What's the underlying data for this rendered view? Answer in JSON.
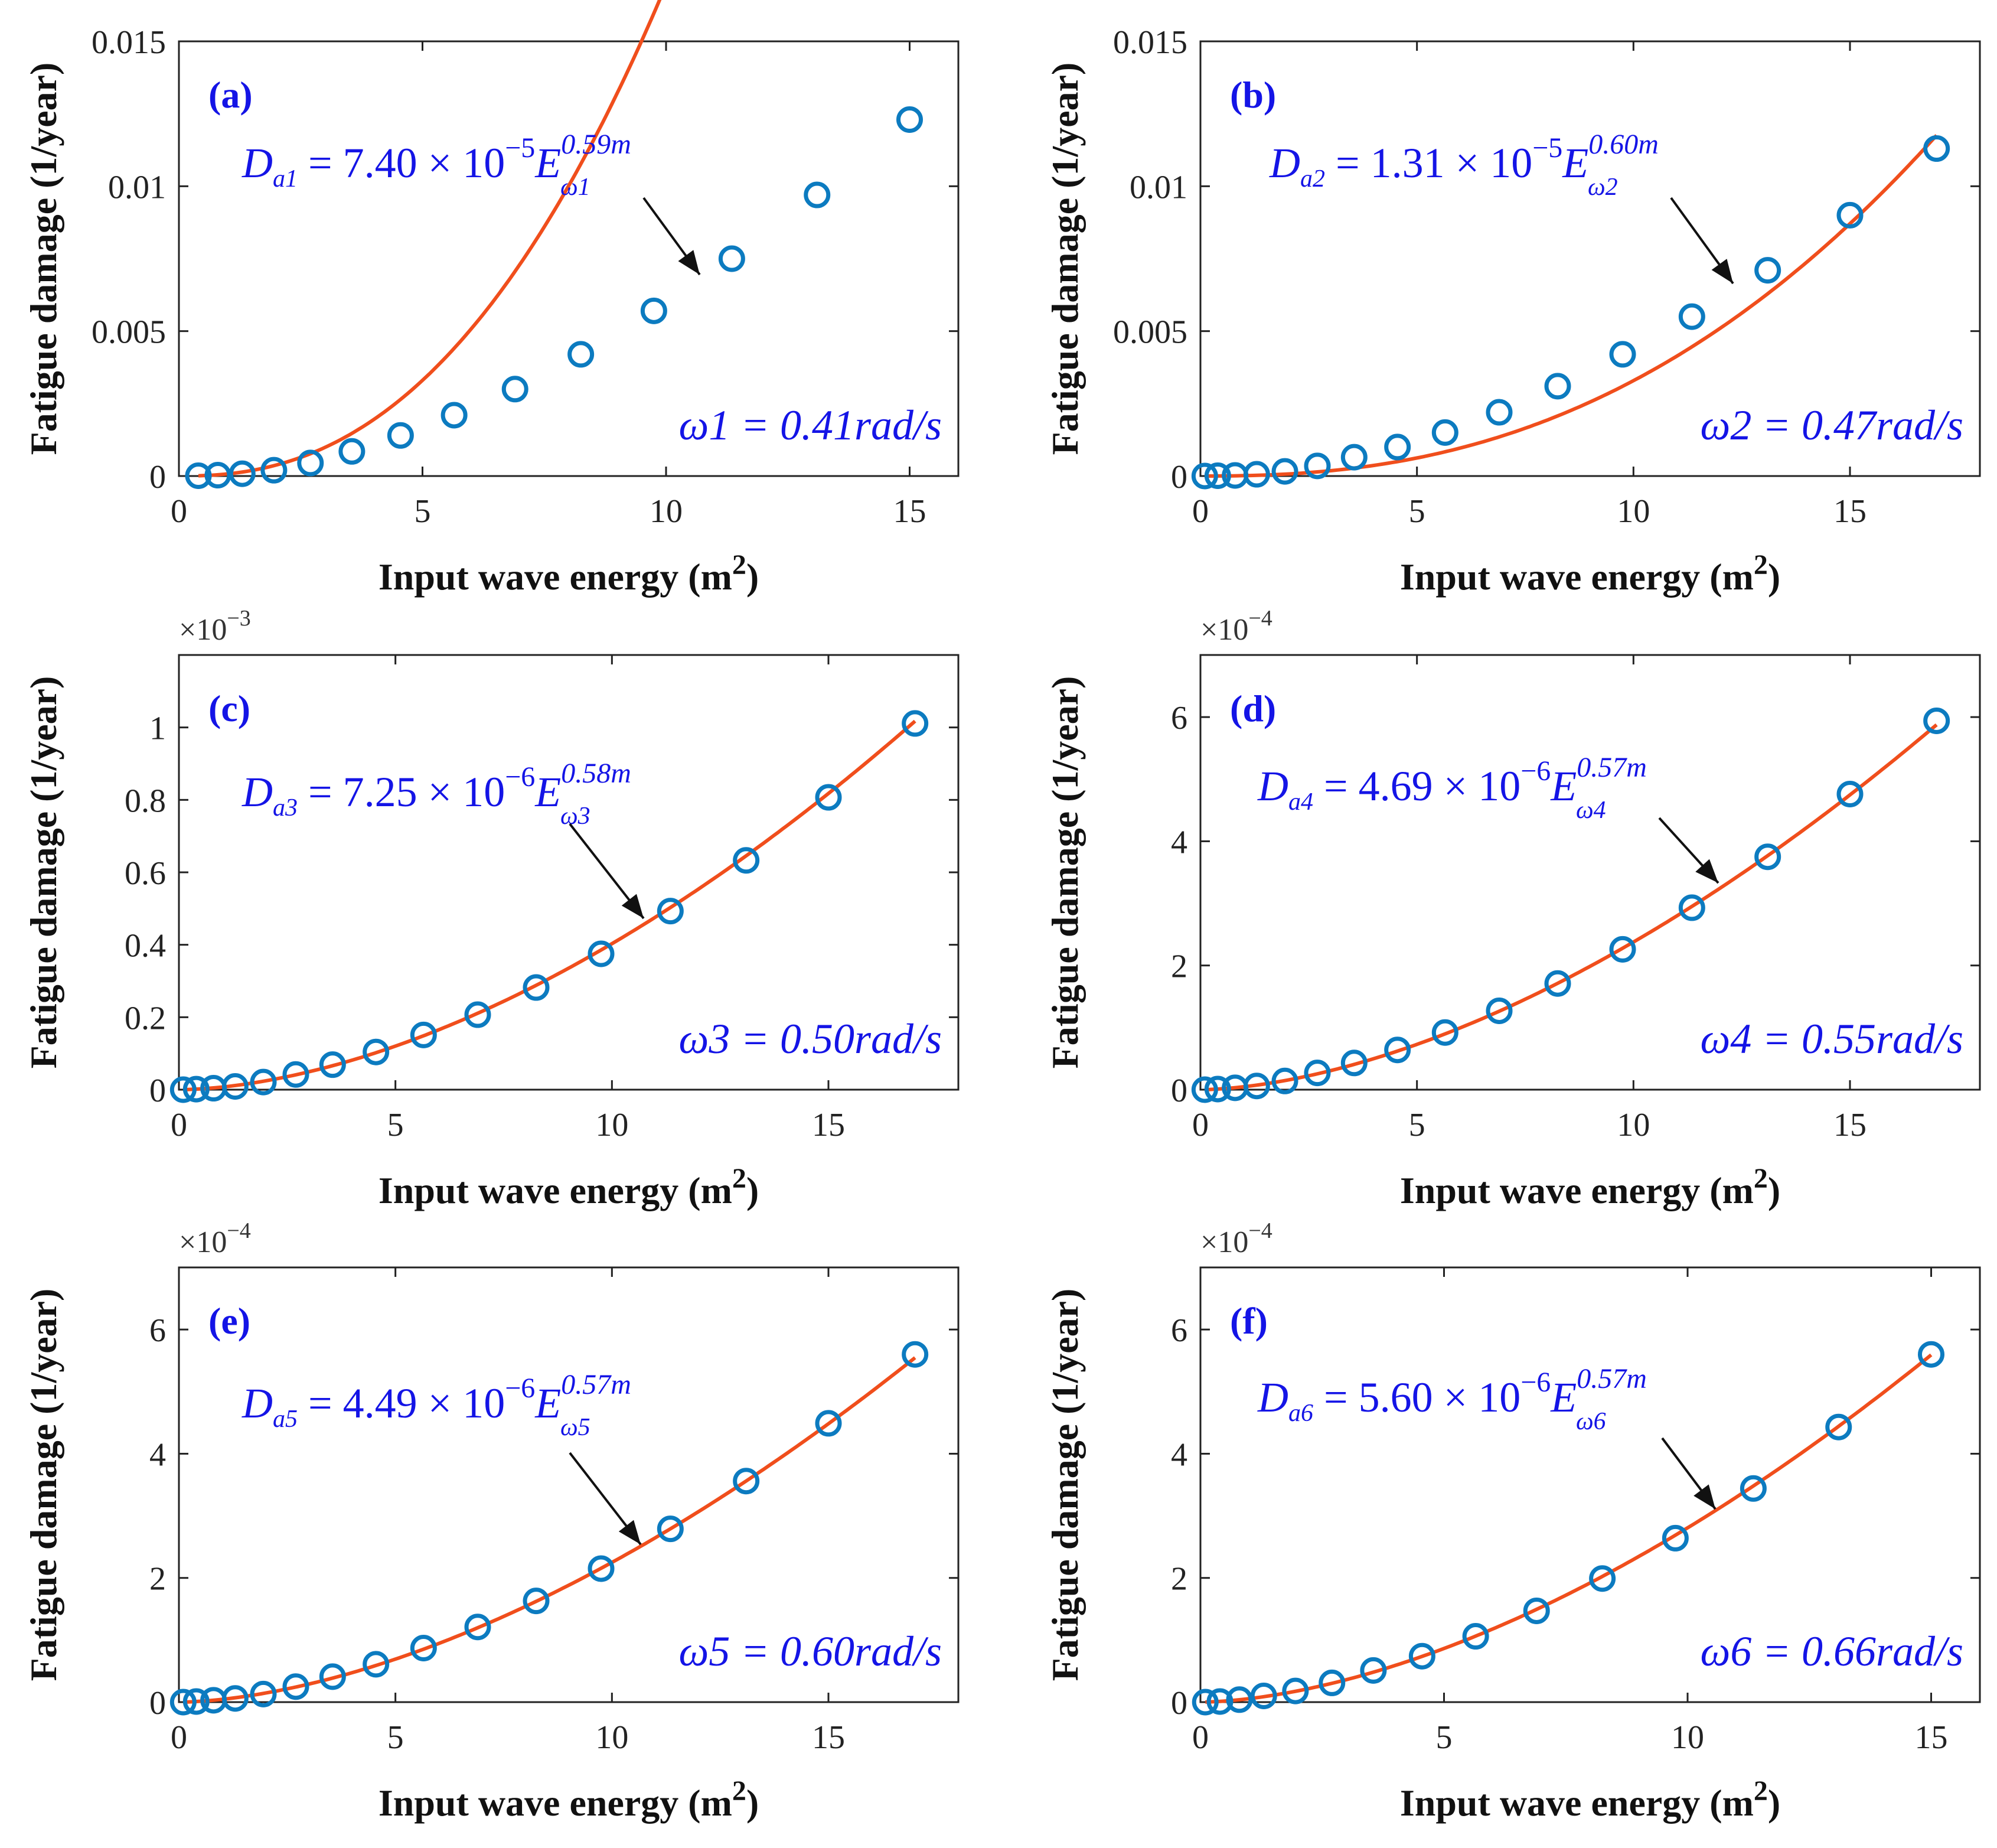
{
  "figure": {
    "xlabel": "Input wave energy (m",
    "xlabel_sup": "2",
    "xlabel_end": ")",
    "ylabel": "Fatigue damage (1/year)"
  },
  "colors": {
    "fit": "#f04e1c",
    "marker": "#0c7bc0",
    "annotation": "#1414e6"
  },
  "chart_data": [
    {
      "type": "scatter",
      "panel": "(a)",
      "xlim": [
        0,
        16
      ],
      "ylim": [
        0,
        0.015
      ],
      "xticks": [
        0,
        5,
        10,
        15
      ],
      "xtick_labels": [
        "0",
        "5",
        "10",
        "15"
      ],
      "yticks": [
        0,
        0.005,
        0.01,
        0.015
      ],
      "ytick_labels": [
        "0",
        "0.005",
        "0.01",
        "0.015"
      ],
      "exponent_label": "",
      "eq_D": "D",
      "eq_Dsub": "a1",
      "eq_rest": " = 7.40 × 10",
      "eq_pow": "−5",
      "eq_E": "E",
      "eq_Esup": "0.59m",
      "eq_Esub": "ω1",
      "omega_text": "ω1 = 0.41rad/s",
      "fit_coef": 7.4e-05,
      "fit_exp": 2.36,
      "series": [
        {
          "name": "fit",
          "style": "line"
        },
        {
          "name": "data",
          "style": "circle",
          "x": [
            0.4,
            0.8,
            1.3,
            1.95,
            2.7,
            3.55,
            4.55,
            5.65,
            6.9,
            8.25,
            9.75,
            11.35,
            13.1,
            15.0
          ],
          "y": [
            1e-05,
            3e-05,
            8e-05,
            0.0002,
            0.00045,
            0.00085,
            0.0014,
            0.0021,
            0.003,
            0.0042,
            0.0057,
            0.0075,
            0.0097,
            0.0123
          ]
        }
      ]
    },
    {
      "type": "scatter",
      "panel": "(b)",
      "xlim": [
        0,
        18
      ],
      "ylim": [
        0,
        0.015
      ],
      "xticks": [
        0,
        5,
        10,
        15
      ],
      "xtick_labels": [
        "0",
        "5",
        "10",
        "15"
      ],
      "yticks": [
        0,
        0.005,
        0.01,
        0.015
      ],
      "ytick_labels": [
        "0",
        "0.005",
        "0.01",
        "0.015"
      ],
      "exponent_label": "",
      "eq_D": "D",
      "eq_Dsub": "a2",
      "eq_rest": " = 1.31 × 10",
      "eq_pow": "−5",
      "eq_E": "E",
      "eq_Esup": "0.60m",
      "eq_Esub": "ω2",
      "omega_text": "ω2 = 0.47rad/s",
      "fit_coef": 1.31e-05,
      "fit_exp": 2.4,
      "series": [
        {
          "name": "fit",
          "style": "line"
        },
        {
          "name": "data",
          "style": "circle",
          "x": [
            0.1,
            0.4,
            0.8,
            1.3,
            1.95,
            2.7,
            3.55,
            4.55,
            5.65,
            6.9,
            8.25,
            9.75,
            11.35,
            13.1,
            15.0,
            17.0
          ],
          "y": [
            0.0,
            1e-05,
            2e-05,
            6e-05,
            0.00016,
            0.00035,
            0.00065,
            0.001,
            0.0015,
            0.0022,
            0.0031,
            0.0042,
            0.0055,
            0.0071,
            0.009,
            0.0113
          ]
        }
      ]
    },
    {
      "type": "scatter",
      "panel": "(c)",
      "xlim": [
        0,
        18
      ],
      "ylim": [
        0,
        0.0012
      ],
      "xticks": [
        0,
        5,
        10,
        15
      ],
      "xtick_labels": [
        "0",
        "5",
        "10",
        "15"
      ],
      "yticks": [
        0,
        0.0002,
        0.0004,
        0.0006,
        0.0008,
        0.001
      ],
      "ytick_labels": [
        "0",
        "0.2",
        "0.4",
        "0.6",
        "0.8",
        "1"
      ],
      "exponent_label": "×10",
      "exponent_power": "−3",
      "eq_D": "D",
      "eq_Dsub": "a3",
      "eq_rest": " = 7.25 × 10",
      "eq_pow": "−6",
      "eq_E": "E",
      "eq_Esup": "0.58m",
      "eq_Esub": "ω3",
      "omega_text": "ω3 = 0.50rad/s",
      "fit_coef": 7.25e-06,
      "fit_exp": 1.745,
      "series": [
        {
          "name": "fit",
          "style": "line"
        },
        {
          "name": "data",
          "style": "circle",
          "x": [
            0.1,
            0.4,
            0.8,
            1.3,
            1.95,
            2.7,
            3.55,
            4.55,
            5.65,
            6.9,
            8.25,
            9.75,
            11.35,
            13.1,
            15.0,
            17.0
          ],
          "y": [
            0.0,
            1.5e-06,
            4e-06,
            9e-06,
            2.1e-05,
            4.2e-05,
            6.9e-05,
            0.000104,
            0.000151,
            0.000207,
            0.000282,
            0.000375,
            0.000493,
            0.000633,
            0.000807,
            0.001011
          ]
        }
      ]
    },
    {
      "type": "scatter",
      "panel": "(d)",
      "xlim": [
        0,
        18
      ],
      "ylim": [
        0,
        0.0007
      ],
      "xticks": [
        0,
        5,
        10,
        15
      ],
      "xtick_labels": [
        "0",
        "5",
        "10",
        "15"
      ],
      "yticks": [
        0,
        0.0002,
        0.0004,
        0.0006
      ],
      "ytick_labels": [
        "0",
        "2",
        "4",
        "6"
      ],
      "exponent_label": "×10",
      "exponent_power": "−4",
      "eq_D": "D",
      "eq_Dsub": "a4",
      "eq_rest": " = 4.69 × 10",
      "eq_pow": "−6",
      "eq_E": "E",
      "eq_Esup": "0.57m",
      "eq_Esub": "ω4",
      "omega_text": "ω4 = 0.55rad/s",
      "fit_coef": 4.69e-06,
      "fit_exp": 1.705,
      "series": [
        {
          "name": "fit",
          "style": "line"
        },
        {
          "name": "data",
          "style": "circle",
          "x": [
            0.1,
            0.4,
            0.8,
            1.3,
            1.95,
            2.7,
            3.55,
            4.55,
            5.65,
            6.9,
            8.25,
            9.75,
            11.35,
            13.1,
            15.0,
            17.0
          ],
          "y": [
            0.0,
            1e-06,
            3e-06,
            6e-06,
            1.4e-05,
            2.7e-05,
            4.3e-05,
            6.4e-05,
            9.2e-05,
            0.000127,
            0.000171,
            0.000226,
            0.000293,
            0.000375,
            0.000476,
            0.000594
          ]
        }
      ]
    },
    {
      "type": "scatter",
      "panel": "(e)",
      "xlim": [
        0,
        18
      ],
      "ylim": [
        0,
        0.0007
      ],
      "xticks": [
        0,
        5,
        10,
        15
      ],
      "xtick_labels": [
        "0",
        "5",
        "10",
        "15"
      ],
      "yticks": [
        0,
        0.0002,
        0.0004,
        0.0006
      ],
      "ytick_labels": [
        "0",
        "2",
        "4",
        "6"
      ],
      "exponent_label": "×10",
      "exponent_power": "−4",
      "eq_D": "D",
      "eq_Dsub": "a5",
      "eq_rest": " = 4.49 × 10",
      "eq_pow": "−6",
      "eq_E": "E",
      "eq_Esup": "0.57m",
      "eq_Esub": "ω5",
      "omega_text": "ω5 = 0.60rad/s",
      "fit_coef": 4.49e-06,
      "fit_exp": 1.7,
      "series": [
        {
          "name": "fit",
          "style": "line"
        },
        {
          "name": "data",
          "style": "circle",
          "x": [
            0.1,
            0.4,
            0.8,
            1.3,
            1.95,
            2.7,
            3.55,
            4.55,
            5.65,
            6.9,
            8.25,
            9.75,
            11.35,
            13.1,
            15.0,
            17.0
          ],
          "y": [
            0.0,
            1e-06,
            3e-06,
            6e-06,
            1.3e-05,
            2.5e-05,
            4.1e-05,
            6.1e-05,
            8.7e-05,
            0.000121,
            0.000163,
            0.000215,
            0.000279,
            0.000356,
            0.000449,
            0.00056
          ]
        }
      ]
    },
    {
      "type": "scatter",
      "panel": "(f)",
      "xlim": [
        0,
        16
      ],
      "ylim": [
        0,
        0.0007
      ],
      "xticks": [
        0,
        5,
        10,
        15
      ],
      "xtick_labels": [
        "0",
        "5",
        "10",
        "15"
      ],
      "yticks": [
        0,
        0.0002,
        0.0004,
        0.0006
      ],
      "ytick_labels": [
        "0",
        "2",
        "4",
        "6"
      ],
      "exponent_label": "×10",
      "exponent_power": "−4",
      "eq_D": "D",
      "eq_Dsub": "a6",
      "eq_rest": " = 5.60 × 10",
      "eq_pow": "−6",
      "eq_E": "E",
      "eq_Esup": "0.57m",
      "eq_Esub": "ω6",
      "omega_text": "ω6 = 0.66rad/s",
      "fit_coef": 5.6e-06,
      "fit_exp": 1.7,
      "series": [
        {
          "name": "fit",
          "style": "line"
        },
        {
          "name": "data",
          "style": "circle",
          "x": [
            0.1,
            0.4,
            0.8,
            1.3,
            1.95,
            2.7,
            3.55,
            4.55,
            5.65,
            6.9,
            8.25,
            9.75,
            11.35,
            13.1,
            15.0
          ],
          "y": [
            0.0,
            1e-06,
            4e-06,
            1e-05,
            1.8e-05,
            3.1e-05,
            5.1e-05,
            7.4e-05,
            0.000106,
            0.000147,
            0.000199,
            0.000264,
            0.000344,
            0.000443,
            0.00056
          ]
        }
      ]
    }
  ]
}
